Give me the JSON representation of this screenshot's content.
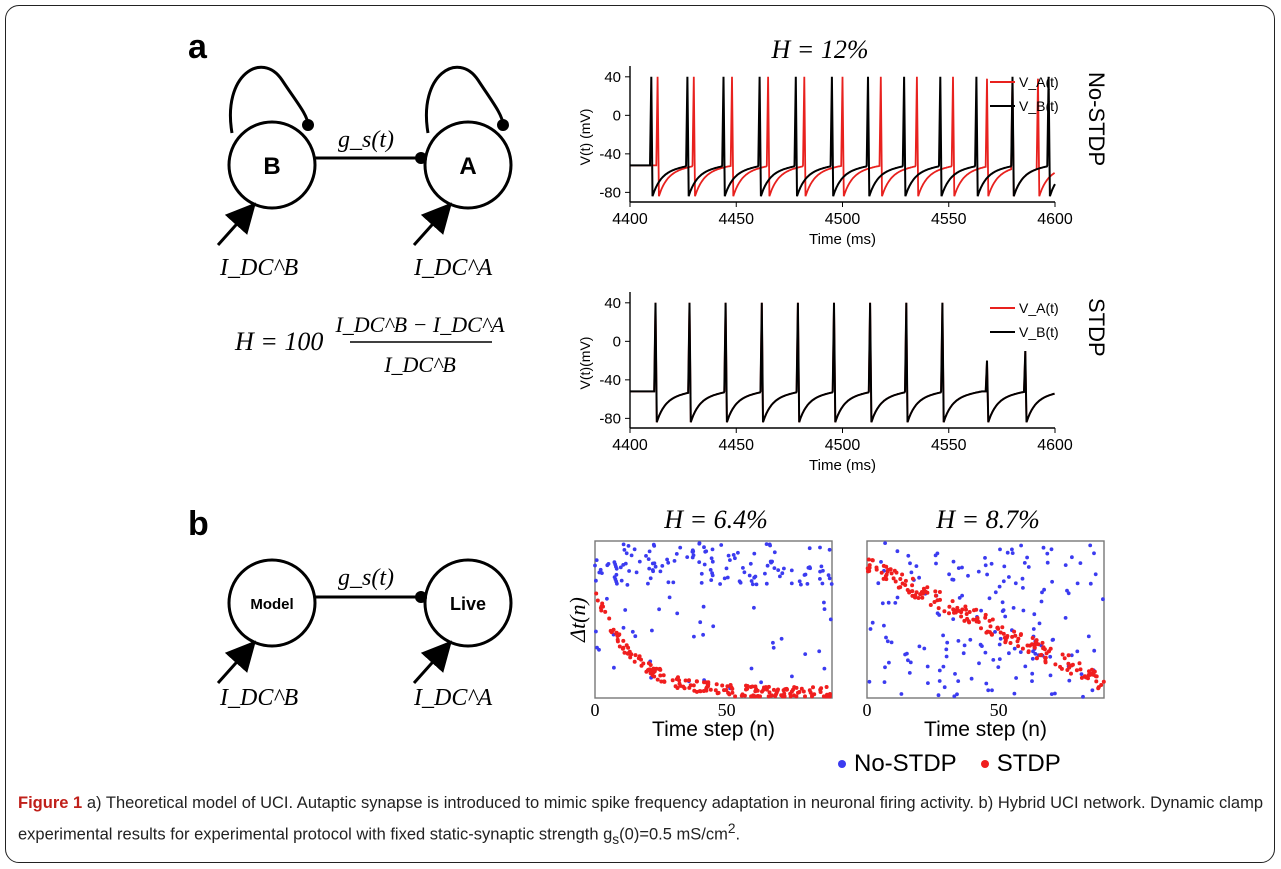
{
  "panels": {
    "a": "a",
    "b": "b"
  },
  "diagram_a": {
    "neuron_left": "B",
    "neuron_right": "A",
    "synapse_label": "g_s(t)",
    "input_left": "I_DC^B",
    "input_right": "I_DC^A"
  },
  "formula": {
    "lhs": "H = 100",
    "numerator": "I_DC^B − I_DC^A",
    "denominator": "I_DC^B"
  },
  "diagram_b": {
    "neuron_left": "Model",
    "neuron_right": "Live",
    "synapse_label": "g_s(t)",
    "input_left": "I_DC^B",
    "input_right": "I_DC^A"
  },
  "chart_data": [
    {
      "type": "line",
      "id": "no-stdp-trace",
      "title": "H = 12%",
      "side_label": "No-STDP",
      "xlabel": "Time (ms)",
      "ylabel": "V(t) (mV)",
      "xlim": [
        4400,
        4600
      ],
      "ylim": [
        -90,
        45
      ],
      "xticks": [
        4400,
        4450,
        4500,
        4550,
        4600
      ],
      "yticks": [
        40,
        0,
        -40,
        -80
      ],
      "legend_placement": "top-right",
      "series": [
        {
          "name": "V_A(t)",
          "color": "#e8211e",
          "spike_times": [
            4413,
            4430,
            4448,
            4465,
            4482,
            4500,
            4518,
            4535,
            4552,
            4568,
            4580,
            4592
          ],
          "spike_peaks": [
            40,
            40,
            40,
            40,
            40,
            40,
            40,
            40,
            40,
            38,
            38,
            38
          ]
        },
        {
          "name": "V_B(t)",
          "color": "#000000",
          "spike_times": [
            4410,
            4427,
            4444,
            4461,
            4478,
            4495,
            4512,
            4529,
            4546,
            4563,
            4580,
            4597
          ],
          "spike_peaks": [
            40,
            40,
            40,
            40,
            40,
            40,
            40,
            40,
            40,
            40,
            40,
            40
          ]
        }
      ]
    },
    {
      "type": "line",
      "id": "stdp-trace",
      "title": "",
      "side_label": "STDP",
      "xlabel": "Time (ms)",
      "ylabel": "V(t)(mV)",
      "xlim": [
        4400,
        4600
      ],
      "ylim": [
        -90,
        45
      ],
      "xticks": [
        4400,
        4450,
        4500,
        4550,
        4600
      ],
      "yticks": [
        40,
        0,
        -40,
        -80
      ],
      "legend_placement": "top-right",
      "series": [
        {
          "name": "V_A(t)",
          "color": "#e8211e",
          "spike_times": [
            4412,
            4428,
            4445,
            4462,
            4479,
            4496,
            4513,
            4530,
            4547,
            4568,
            4586
          ],
          "spike_peaks": [
            40,
            40,
            40,
            40,
            40,
            40,
            40,
            40,
            40,
            -20,
            -10
          ]
        },
        {
          "name": "V_B(t)",
          "color": "#000000",
          "spike_times": [
            4412,
            4428,
            4445,
            4462,
            4479,
            4496,
            4513,
            4530,
            4547,
            4568,
            4586
          ],
          "spike_peaks": [
            40,
            40,
            40,
            40,
            40,
            40,
            40,
            40,
            40,
            -20,
            -10
          ]
        }
      ]
    },
    {
      "type": "scatter",
      "id": "scatter-h64",
      "title": "H = 6.4%",
      "xlabel": "Time step (n)",
      "ylabel": "Δt(n)",
      "xlim": [
        0,
        90
      ],
      "xticks": [
        0,
        50
      ],
      "ylim": [
        0,
        1
      ],
      "series": [
        {
          "name": "No-STDP",
          "color": "#3b3bf0",
          "pattern": "scattered-high"
        },
        {
          "name": "STDP",
          "color": "#f01e1e",
          "pattern": "decay",
          "start": 0.68,
          "end": 0.03,
          "rate": 0.07
        }
      ]
    },
    {
      "type": "scatter",
      "id": "scatter-h87",
      "title": "H = 8.7%",
      "xlabel": "Time step (n)",
      "ylabel": "",
      "xlim": [
        0,
        90
      ],
      "xticks": [
        0,
        50
      ],
      "ylim": [
        0,
        1
      ],
      "series": [
        {
          "name": "No-STDP",
          "color": "#3b3bf0",
          "pattern": "uniform"
        },
        {
          "name": "STDP",
          "color": "#f01e1e",
          "pattern": "linear-decay",
          "start": 0.85,
          "end": 0.1
        }
      ]
    }
  ],
  "legend": {
    "items": [
      {
        "label": "No-STDP",
        "color": "#3b3bf0"
      },
      {
        "label": "STDP",
        "color": "#f01e1e"
      }
    ]
  },
  "caption": {
    "label": "Figure 1",
    "text": "a) Theoretical model of UCI. Autaptic synapse is introduced to mimic spike frequency adaptation in neuronal firing activity. b) Hybrid UCI network. Dynamic clamp experimental results for experimental protocol with fixed static-synaptic strength g",
    "sub": "s",
    "text2": "(0)=0.5 mS/cm",
    "sup": "2",
    "text3": "."
  }
}
